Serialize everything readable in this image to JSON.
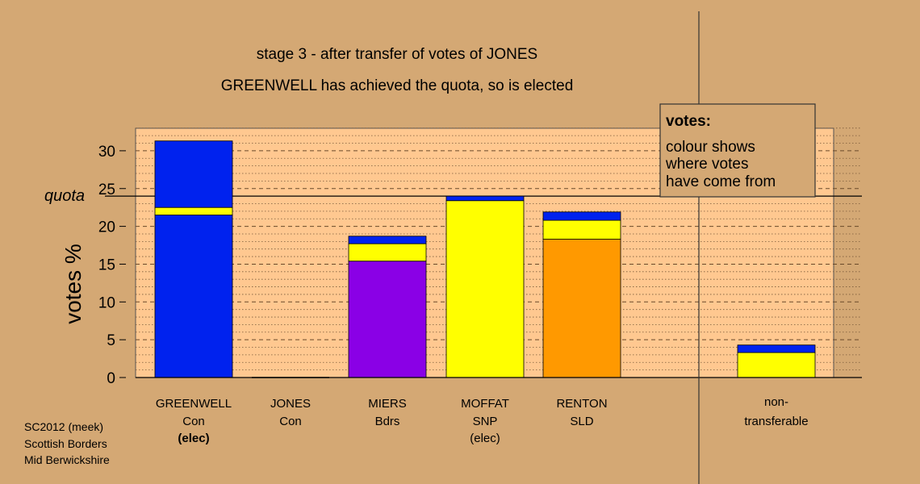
{
  "chart_data": {
    "type": "bar",
    "stacked": true,
    "title": "stage 3 - after transfer of votes of JONES",
    "subtitle": "GREENWELL has achieved the quota, so is elected",
    "ylabel": "votes %",
    "ylim": [
      0,
      33
    ],
    "yticks": [
      0,
      5,
      10,
      15,
      20,
      25,
      30
    ],
    "quota": {
      "label": "quota",
      "value": 24
    },
    "grid": true,
    "colors": {
      "Con": "#0022ee",
      "Bdrs": "#8a00e6",
      "SNP": "#ffff00",
      "SLD": "#ff9900"
    },
    "categories": [
      {
        "name": "GREENWELL",
        "party": "Con",
        "note": "(elec)",
        "note_bold": true,
        "segments": [
          {
            "color": "Con",
            "value": 21.5
          },
          {
            "color": "SNP",
            "value": 1.0
          },
          {
            "color": "Con",
            "value": 8.8
          }
        ]
      },
      {
        "name": "JONES",
        "party": "Con",
        "note": "",
        "note_bold": false,
        "segments": []
      },
      {
        "name": "MIERS",
        "party": "Bdrs",
        "note": "",
        "note_bold": false,
        "segments": [
          {
            "color": "Bdrs",
            "value": 15.4
          },
          {
            "color": "SNP",
            "value": 2.3
          },
          {
            "color": "Con",
            "value": 1.0
          }
        ]
      },
      {
        "name": "MOFFAT",
        "party": "SNP",
        "note": "(elec)",
        "note_bold": false,
        "segments": [
          {
            "color": "SNP",
            "value": 23.4
          },
          {
            "color": "Con",
            "value": 0.6
          }
        ]
      },
      {
        "name": "RENTON",
        "party": "SLD",
        "note": "",
        "note_bold": false,
        "segments": [
          {
            "color": "SLD",
            "value": 18.3
          },
          {
            "color": "SNP",
            "value": 2.5
          },
          {
            "color": "Con",
            "value": 1.1
          }
        ]
      }
    ],
    "nontransferable": {
      "label1": "non-",
      "label2": "transferable",
      "segments": [
        {
          "color": "SNP",
          "value": 3.3
        },
        {
          "color": "Con",
          "value": 1.0
        }
      ]
    },
    "legend": {
      "title": "votes:",
      "lines": [
        "colour shows",
        "where votes",
        "have come from"
      ],
      "position": "top-right"
    }
  },
  "footer": {
    "lines": [
      "SC2012 (meek)",
      "Scottish Borders",
      "Mid Berwickshire"
    ]
  }
}
